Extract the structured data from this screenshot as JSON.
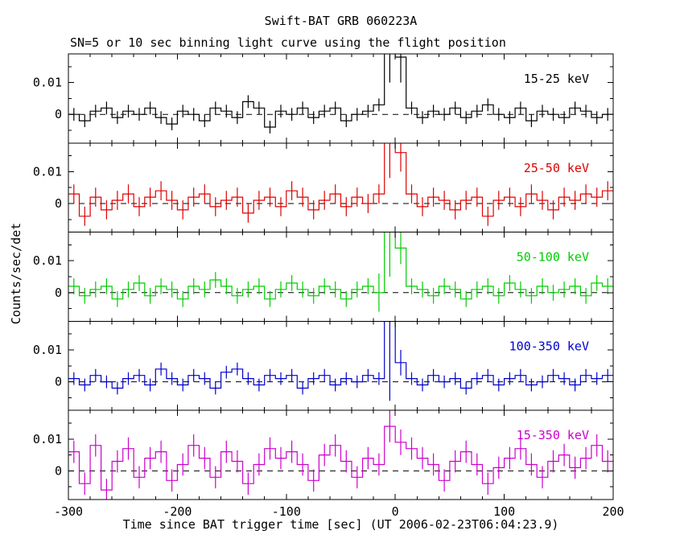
{
  "chart_data": {
    "type": "line",
    "title": "Swift-BAT GRB 060223A",
    "subtitle": "SN=5 or 10 sec binning light curve using the flight position",
    "xlabel": "Time since BAT trigger time [sec] (UT 2006-02-23T06:04:23.9)",
    "ylabel": "Counts/sec/det",
    "xlim": [
      -300,
      200
    ],
    "ylim": [
      -0.009,
      0.019
    ],
    "x_ticks": [
      -300,
      -200,
      -100,
      0,
      100,
      200
    ],
    "x_minor_step": 20,
    "y_ticks": [
      0,
      0.01
    ],
    "y_minor_ticks": [
      -0.005,
      0.005,
      0.015
    ],
    "bin_width": 10,
    "zero_line": {
      "value": 0,
      "style": "dashed",
      "color": "#000000"
    },
    "x": [
      -295,
      -285,
      -275,
      -265,
      -255,
      -245,
      -235,
      -225,
      -215,
      -205,
      -195,
      -185,
      -175,
      -165,
      -155,
      -145,
      -135,
      -125,
      -115,
      -105,
      -95,
      -85,
      -75,
      -65,
      -55,
      -45,
      -35,
      -25,
      -15,
      -5,
      5,
      15,
      25,
      35,
      45,
      55,
      65,
      75,
      85,
      95,
      105,
      115,
      125,
      135,
      145,
      155,
      165,
      175,
      185,
      195
    ],
    "series": [
      {
        "name": "15-25 keV",
        "color": "#000000",
        "values": [
          0,
          -0.002,
          0.001,
          0.002,
          -0.001,
          0.001,
          0,
          0.002,
          -0.001,
          -0.003,
          0.001,
          0,
          -0.002,
          0.002,
          0.001,
          -0.001,
          0.004,
          0.002,
          -0.004,
          0.001,
          0,
          0.002,
          -0.001,
          0.001,
          0.002,
          -0.002,
          0,
          0.001,
          0.003,
          0.03,
          0.018,
          0.002,
          -0.001,
          0.001,
          0,
          0.002,
          -0.001,
          0.001,
          0.003,
          0,
          -0.001,
          0.002,
          -0.002,
          0.001,
          0,
          -0.001,
          0.002,
          0.001,
          -0.001,
          0
        ],
        "errors": [
          0.002,
          0.002,
          0.002,
          0.002,
          0.002,
          0.002,
          0.002,
          0.002,
          0.002,
          0.002,
          0.002,
          0.002,
          0.002,
          0.002,
          0.002,
          0.002,
          0.002,
          0.002,
          0.002,
          0.002,
          0.002,
          0.002,
          0.002,
          0.002,
          0.002,
          0.002,
          0.002,
          0.002,
          0.002,
          0.02,
          0.008,
          0.002,
          0.002,
          0.002,
          0.002,
          0.002,
          0.002,
          0.002,
          0.002,
          0.002,
          0.002,
          0.002,
          0.002,
          0.002,
          0.002,
          0.002,
          0.002,
          0.002,
          0.002,
          0.002
        ]
      },
      {
        "name": "25-50 keV",
        "color": "#dd0000",
        "values": [
          0.003,
          -0.004,
          0.002,
          -0.002,
          0.001,
          0.003,
          -0.001,
          0.002,
          0.004,
          0.001,
          -0.002,
          0.002,
          0.003,
          -0.001,
          0.001,
          0.002,
          -0.003,
          0.001,
          0.002,
          -0.001,
          0.004,
          0.002,
          -0.002,
          0.001,
          0.003,
          -0.001,
          0.002,
          0,
          0.003,
          0.026,
          0.016,
          0.003,
          -0.001,
          0.002,
          0.001,
          -0.002,
          0.001,
          0.002,
          -0.004,
          0.001,
          0.002,
          -0.001,
          0.003,
          0.001,
          -0.002,
          0.002,
          0.001,
          0.003,
          0.002,
          0.004
        ],
        "errors": [
          0.003,
          0.003,
          0.003,
          0.003,
          0.003,
          0.003,
          0.003,
          0.003,
          0.003,
          0.003,
          0.003,
          0.003,
          0.003,
          0.003,
          0.003,
          0.003,
          0.003,
          0.003,
          0.003,
          0.003,
          0.003,
          0.003,
          0.003,
          0.003,
          0.003,
          0.003,
          0.003,
          0.003,
          0.003,
          0.018,
          0.006,
          0.003,
          0.003,
          0.003,
          0.003,
          0.003,
          0.003,
          0.003,
          0.003,
          0.003,
          0.003,
          0.003,
          0.003,
          0.003,
          0.003,
          0.003,
          0.003,
          0.003,
          0.003,
          0.003
        ]
      },
      {
        "name": "50-100 keV",
        "color": "#00cc00",
        "values": [
          0.002,
          -0.001,
          0.001,
          0.002,
          -0.002,
          0.001,
          0.003,
          -0.001,
          0.002,
          0.001,
          -0.002,
          0.002,
          0.001,
          0.004,
          0.002,
          -0.001,
          0.001,
          0.002,
          -0.002,
          0.001,
          0.003,
          0.001,
          -0.001,
          0.002,
          0.001,
          -0.002,
          0.001,
          0.002,
          0,
          0.03,
          0.014,
          0.002,
          0.001,
          -0.001,
          0.002,
          0.001,
          -0.002,
          0.001,
          0.002,
          -0.001,
          0.003,
          0.001,
          -0.001,
          0.002,
          0,
          0.001,
          0.002,
          -0.001,
          0.003,
          0.002
        ],
        "errors": [
          0.0025,
          0.0025,
          0.0025,
          0.0025,
          0.0025,
          0.0025,
          0.0025,
          0.0025,
          0.0025,
          0.0025,
          0.0025,
          0.0025,
          0.0025,
          0.0025,
          0.0025,
          0.0025,
          0.0025,
          0.0025,
          0.0025,
          0.0025,
          0.0025,
          0.0025,
          0.0025,
          0.0025,
          0.0025,
          0.0025,
          0.0025,
          0.0025,
          0.006,
          0.025,
          0.005,
          0.0025,
          0.0025,
          0.0025,
          0.0025,
          0.0025,
          0.0025,
          0.0025,
          0.0025,
          0.0025,
          0.0025,
          0.0025,
          0.0025,
          0.0025,
          0.0025,
          0.0025,
          0.0025,
          0.0025,
          0.0025,
          0.0025
        ]
      },
      {
        "name": "100-350 keV",
        "color": "#0000cc",
        "values": [
          0.001,
          -0.001,
          0.002,
          0,
          -0.002,
          0.001,
          0.002,
          -0.001,
          0.004,
          0.001,
          -0.001,
          0.002,
          0.001,
          -0.002,
          0.003,
          0.004,
          0.001,
          -0.001,
          0.002,
          0.001,
          0.002,
          -0.002,
          0.001,
          0.002,
          -0.001,
          0.001,
          0,
          0.002,
          0.001,
          0.024,
          0.006,
          0.001,
          -0.001,
          0.002,
          0,
          0.001,
          -0.002,
          0.001,
          0.002,
          -0.001,
          0.001,
          0.002,
          -0.001,
          0,
          0.002,
          0.001,
          -0.001,
          0.002,
          0.001,
          0.002
        ],
        "errors": [
          0.002,
          0.002,
          0.002,
          0.002,
          0.002,
          0.002,
          0.002,
          0.002,
          0.002,
          0.002,
          0.002,
          0.002,
          0.002,
          0.002,
          0.002,
          0.002,
          0.002,
          0.002,
          0.002,
          0.002,
          0.002,
          0.002,
          0.002,
          0.002,
          0.002,
          0.002,
          0.002,
          0.002,
          0.002,
          0.03,
          0.004,
          0.002,
          0.002,
          0.002,
          0.002,
          0.002,
          0.002,
          0.002,
          0.002,
          0.002,
          0.002,
          0.002,
          0.002,
          0.002,
          0.002,
          0.002,
          0.002,
          0.002,
          0.002,
          0.002
        ]
      },
      {
        "name": "15-350 keV",
        "color": "#cc00cc",
        "values": [
          0.006,
          -0.004,
          0.008,
          -0.006,
          0.003,
          0.007,
          -0.002,
          0.004,
          0.006,
          -0.003,
          0.002,
          0.008,
          0.004,
          -0.002,
          0.006,
          0.003,
          -0.004,
          0.002,
          0.007,
          0.004,
          0.006,
          0.002,
          -0.003,
          0.005,
          0.008,
          0.003,
          -0.002,
          0.004,
          0.002,
          0.014,
          0.009,
          0.007,
          0.004,
          0.002,
          -0.003,
          0.003,
          0.006,
          0.002,
          -0.004,
          0.001,
          0.004,
          0.007,
          0.002,
          -0.002,
          0.003,
          0.005,
          0.001,
          0.004,
          0.008,
          0.003
        ],
        "errors": [
          0.0035,
          0.0035,
          0.0035,
          0.0035,
          0.0035,
          0.0035,
          0.0035,
          0.0035,
          0.0035,
          0.0035,
          0.0035,
          0.0035,
          0.0035,
          0.0035,
          0.0035,
          0.0035,
          0.0035,
          0.0035,
          0.0035,
          0.0035,
          0.0035,
          0.0035,
          0.0035,
          0.0035,
          0.0035,
          0.0035,
          0.0035,
          0.0035,
          0.0035,
          0.005,
          0.004,
          0.0035,
          0.0035,
          0.0035,
          0.0035,
          0.0035,
          0.0035,
          0.0035,
          0.0035,
          0.0035,
          0.0035,
          0.0035,
          0.0035,
          0.0035,
          0.0035,
          0.0035,
          0.0035,
          0.0035,
          0.0035,
          0.0035
        ]
      }
    ]
  }
}
